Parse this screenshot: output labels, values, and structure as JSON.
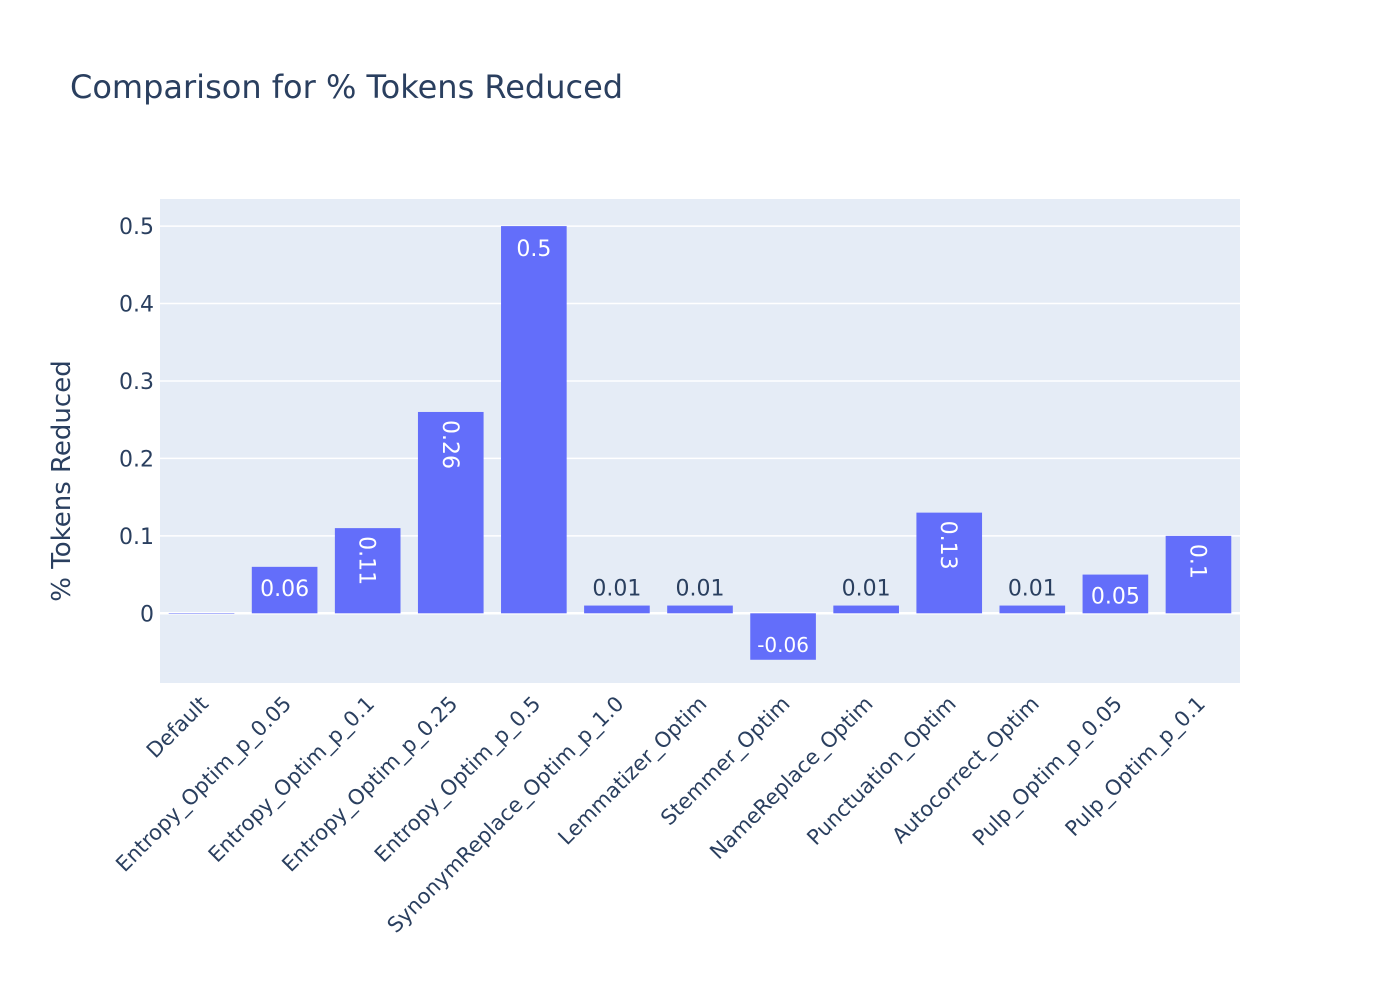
{
  "chart_data": {
    "type": "bar",
    "title": "Comparison for % Tokens Reduced",
    "xlabel": "",
    "ylabel": "% Tokens Reduced",
    "categories": [
      "Default",
      "Entropy_Optim_p_0.05",
      "Entropy_Optim_p_0.1",
      "Entropy_Optim_p_0.25",
      "Entropy_Optim_p_0.5",
      "SynonymReplace_Optim_p_1.0",
      "Lemmatizer_Optim",
      "Stemmer_Optim",
      "NameReplace_Optim",
      "Punctuation_Optim",
      "Autocorrect_Optim",
      "Pulp_Optim_p_0.05",
      "Pulp_Optim_p_0.1"
    ],
    "values": [
      0,
      0.06,
      0.11,
      0.26,
      0.5,
      0.01,
      0.01,
      -0.06,
      0.01,
      0.13,
      0.01,
      0.05,
      0.1
    ],
    "data_labels": [
      "",
      "0.06",
      "0.11",
      "0.26",
      "0.5",
      "0.01",
      "0.01",
      "-0.06",
      "0.01",
      "0.13",
      "0.01",
      "0.05",
      "0.1"
    ],
    "yticks": [
      0,
      0.1,
      0.2,
      0.3,
      0.4,
      0.5
    ],
    "ytick_labels": [
      "0",
      "0.1",
      "0.2",
      "0.3",
      "0.4",
      "0.5"
    ],
    "ylim": [
      -0.09,
      0.535
    ],
    "grid": true,
    "colors": {
      "bar": "#636efa",
      "plot_bg": "#e5ecf6",
      "text": "#2a3f5f",
      "grid": "#ffffff"
    }
  }
}
